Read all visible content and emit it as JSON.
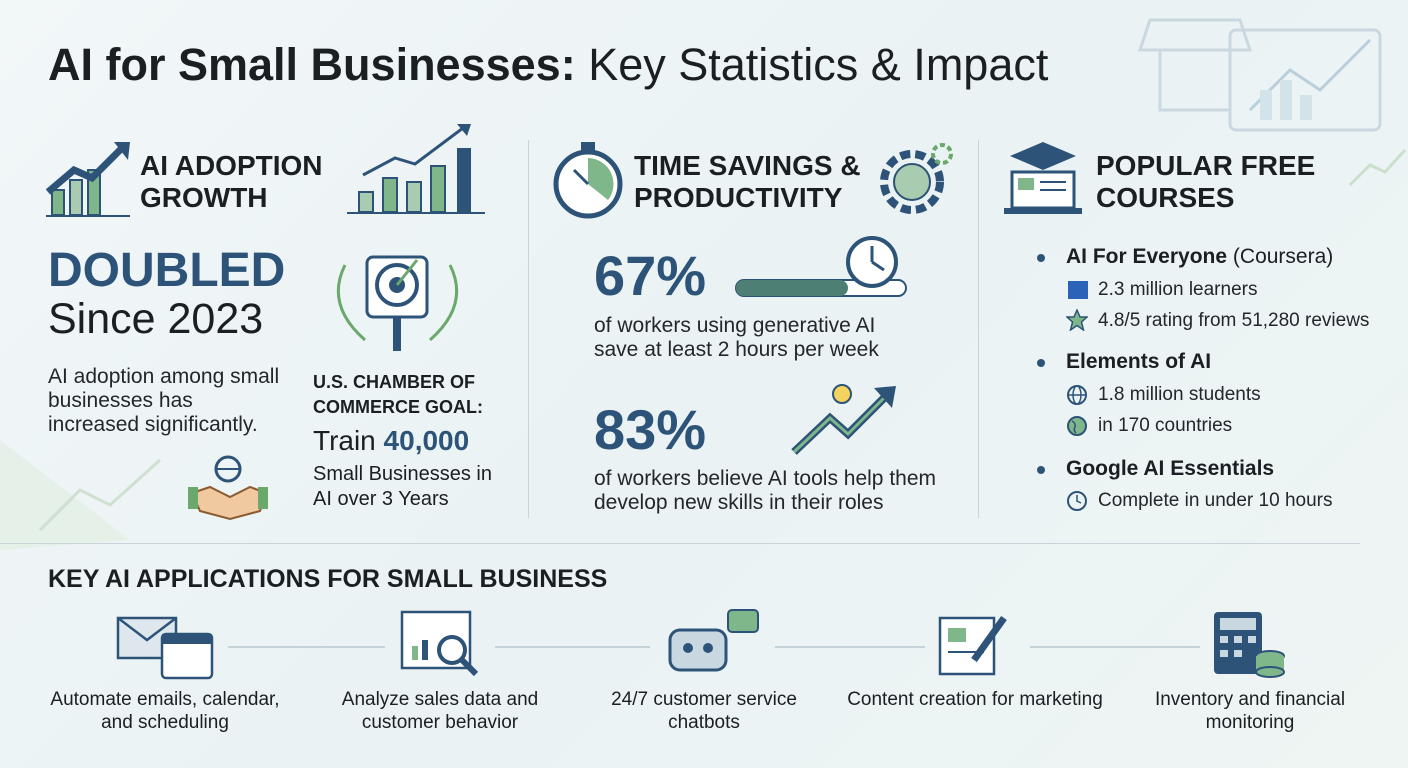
{
  "header": {
    "title_bold": "AI for Small Businesses:",
    "title_rest": "Key Statistics & Impact"
  },
  "adoption": {
    "heading": "AI ADOPTION GROWTH",
    "headline": "DOUBLED",
    "since": "Since 2023",
    "description": "AI adoption among small businesses has increased significantly.",
    "goal_label": "U.S. CHAMBER OF COMMERCE GOAL:",
    "goal_verb": "Train",
    "goal_number": "40,000",
    "goal_detail": "Small Businesses in AI over 3 Years"
  },
  "productivity": {
    "heading": "TIME SAVINGS & PRODUCTIVITY",
    "stats": [
      {
        "value": "67%",
        "text": "of workers using generative AI save at least 2 hours per week"
      },
      {
        "value": "83%",
        "text": "of workers believe AI tools help them develop new skills in their roles"
      }
    ]
  },
  "courses": {
    "heading": "POPULAR FREE COURSES",
    "items": [
      {
        "name": "AI For Everyone",
        "provider": "(Coursera)",
        "details": [
          "2.3 million learners",
          "4.8/5 rating from 51,280 reviews"
        ]
      },
      {
        "name": "Elements of AI",
        "details": [
          "1.8 million students",
          "in 170 countries"
        ]
      },
      {
        "name": "Google AI Essentials",
        "details": [
          "Complete in under 10 hours"
        ]
      }
    ]
  },
  "applications": {
    "heading": "KEY AI APPLICATIONS FOR SMALL BUSINESS",
    "items": [
      "Automate emails, calendar, and scheduling",
      "Analyze sales data and customer behavior",
      "24/7 customer service chatbots",
      "Content creation for marketing",
      "Inventory and financial monitoring"
    ]
  }
}
